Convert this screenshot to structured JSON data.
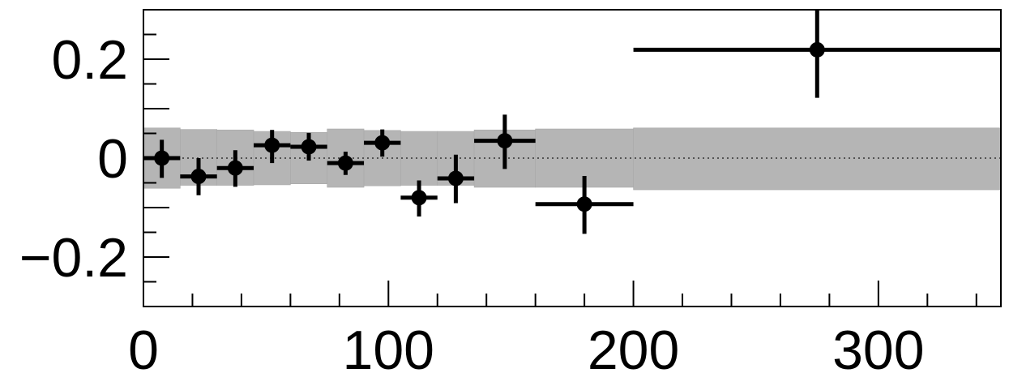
{
  "chart_data": {
    "type": "scatter",
    "title": "",
    "xlabel": "",
    "ylabel": "",
    "xlim": [
      0,
      350
    ],
    "ylim": [
      -0.3,
      0.3
    ],
    "grid": false,
    "legend": "none",
    "zero_line": true,
    "colors": {
      "points": "#000000",
      "band": "#b5b5b5",
      "axes": "#000000"
    },
    "x_ticks": [
      {
        "value": 0,
        "label": "0"
      },
      {
        "value": 100,
        "label": "100"
      },
      {
        "value": 200,
        "label": "200"
      },
      {
        "value": 300,
        "label": "300"
      }
    ],
    "x_minor_step": 20,
    "y_ticks": [
      {
        "value": -0.2,
        "label": "−0.2"
      },
      {
        "value": 0,
        "label": "0"
      },
      {
        "value": 0.2,
        "label": "0.2"
      }
    ],
    "y_minor_step": 0.05,
    "series": [
      {
        "points": [
          {
            "x": 7.5,
            "xlo": 0,
            "xhi": 15,
            "y": 0.0,
            "ylo": -0.04,
            "yhi": 0.037
          },
          {
            "x": 22.5,
            "xlo": 15,
            "xhi": 30,
            "y": -0.037,
            "ylo": -0.075,
            "yhi": 0.0
          },
          {
            "x": 37.5,
            "xlo": 30,
            "xhi": 45,
            "y": -0.02,
            "ylo": -0.058,
            "yhi": 0.016
          },
          {
            "x": 52.5,
            "xlo": 45,
            "xhi": 60,
            "y": 0.026,
            "ylo": -0.01,
            "yhi": 0.057
          },
          {
            "x": 67.5,
            "xlo": 60,
            "xhi": 75,
            "y": 0.023,
            "ylo": -0.005,
            "yhi": 0.051
          },
          {
            "x": 82.5,
            "xlo": 75,
            "xhi": 90,
            "y": -0.01,
            "ylo": -0.034,
            "yhi": 0.013
          },
          {
            "x": 97.5,
            "xlo": 90,
            "xhi": 105,
            "y": 0.031,
            "ylo": 0.003,
            "yhi": 0.058
          },
          {
            "x": 112.5,
            "xlo": 105,
            "xhi": 120,
            "y": -0.08,
            "ylo": -0.118,
            "yhi": -0.045
          },
          {
            "x": 127.5,
            "xlo": 120,
            "xhi": 135,
            "y": -0.041,
            "ylo": -0.091,
            "yhi": 0.007
          },
          {
            "x": 147.5,
            "xlo": 135,
            "xhi": 160,
            "y": 0.035,
            "ylo": -0.022,
            "yhi": 0.088
          },
          {
            "x": 180,
            "xlo": 160,
            "xhi": 200,
            "y": -0.093,
            "ylo": -0.153,
            "yhi": -0.036
          },
          {
            "x": 275,
            "xlo": 200,
            "xhi": 350,
            "y": 0.219,
            "ylo": 0.122,
            "yhi": 0.3
          }
        ]
      }
    ],
    "uncertainty_band": [
      {
        "xlo": 0,
        "xhi": 15,
        "lo": -0.061,
        "hi": 0.061
      },
      {
        "xlo": 15,
        "xhi": 30,
        "lo": -0.055,
        "hi": 0.058
      },
      {
        "xlo": 30,
        "xhi": 45,
        "lo": -0.055,
        "hi": 0.057
      },
      {
        "xlo": 45,
        "xhi": 60,
        "lo": -0.054,
        "hi": 0.054
      },
      {
        "xlo": 60,
        "xhi": 75,
        "lo": -0.052,
        "hi": 0.052
      },
      {
        "xlo": 75,
        "xhi": 90,
        "lo": -0.059,
        "hi": 0.059
      },
      {
        "xlo": 90,
        "xhi": 105,
        "lo": -0.056,
        "hi": 0.056
      },
      {
        "xlo": 105,
        "xhi": 120,
        "lo": -0.055,
        "hi": 0.054
      },
      {
        "xlo": 120,
        "xhi": 135,
        "lo": -0.055,
        "hi": 0.054
      },
      {
        "xlo": 135,
        "xhi": 160,
        "lo": -0.059,
        "hi": 0.057
      },
      {
        "xlo": 160,
        "xhi": 200,
        "lo": -0.059,
        "hi": 0.059
      },
      {
        "xlo": 200,
        "xhi": 350,
        "lo": -0.064,
        "hi": 0.061
      }
    ]
  }
}
